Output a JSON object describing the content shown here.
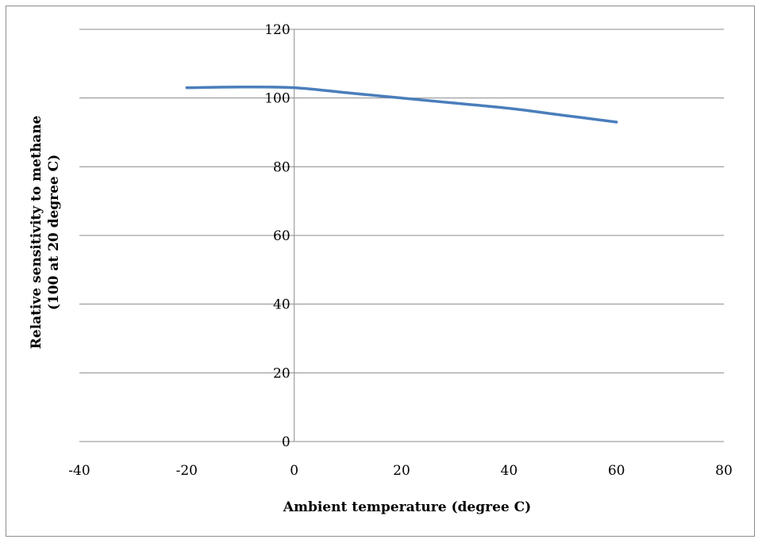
{
  "chart_data": {
    "type": "line",
    "title": "",
    "xlabel": "Ambient temperature (degree C)",
    "ylabel_line1": "Relative sensitivity to methane",
    "ylabel_line2": "(100 at 20 degree C)",
    "xlim": [
      -40,
      80
    ],
    "ylim": [
      0,
      120
    ],
    "x_ticks": [
      -40,
      -20,
      0,
      20,
      40,
      60,
      80
    ],
    "x_tick_labels": [
      "-40",
      "-20",
      "0",
      "20",
      "40",
      "60",
      "80"
    ],
    "y_ticks": [
      0,
      20,
      40,
      60,
      80,
      100,
      120
    ],
    "y_tick_labels": [
      "0",
      "20",
      "40",
      "60",
      "80",
      "100",
      "120"
    ],
    "grid": "horizontal",
    "legend": "none",
    "series": [
      {
        "color": "#4a7ebb",
        "x": [
          -20,
          -10,
          0,
          10,
          20,
          30,
          40,
          50,
          60
        ],
        "y": [
          103,
          103.2,
          103,
          101.5,
          100,
          98.5,
          97,
          95,
          93
        ]
      }
    ]
  }
}
